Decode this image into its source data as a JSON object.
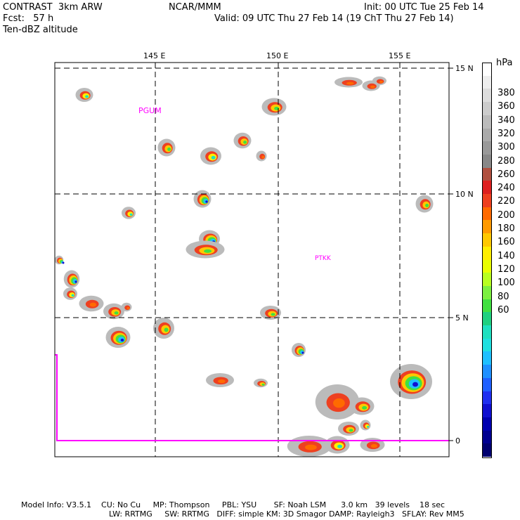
{
  "header": {
    "model": "CONTRAST  3km ARW",
    "org": "NCAR/MMM",
    "init": "Init: 00 UTC Tue 25 Feb 14",
    "fcst": "Fcst:   57 h",
    "valid": "Valid: 09 UTC Thu 27 Feb 14 (19 ChT Thu 27 Feb 14)",
    "field": "Ten-dBZ altitude"
  },
  "map": {
    "lon_labels": [
      "145 E",
      "150 E",
      "155 E"
    ],
    "lat_labels": [
      "15 N",
      "10 N",
      "5 N",
      "0"
    ],
    "stations": [
      "PGUM",
      "PTKK"
    ],
    "coast_color": "#ff00ff"
  },
  "colorbar": {
    "unit": "hPa",
    "labels": [
      "380",
      "360",
      "340",
      "320",
      "300",
      "280",
      "260",
      "240",
      "220",
      "200",
      "180",
      "160",
      "140",
      "120",
      "100",
      "80",
      "60"
    ],
    "colors": [
      "#ffffff",
      "#eeeeee",
      "#dddddd",
      "#cccccc",
      "#bbbbbb",
      "#aaaaaa",
      "#999999",
      "#888888",
      "#b05040",
      "#dd2020",
      "#ee4020",
      "#ff6a00",
      "#ff9a00",
      "#ffc800",
      "#ffee00",
      "#e8ff00",
      "#b8ff20",
      "#7cf040",
      "#40e040",
      "#20d080",
      "#20e0c0",
      "#20e0e0",
      "#20c0ff",
      "#2090ff",
      "#2060ff",
      "#2030f0",
      "#1010d0",
      "#0000b0",
      "#000090",
      "#000070"
    ]
  },
  "footer": {
    "line1": "Model Info: V3.5.1    CU: No Cu     MP: Thompson     PBL: YSU       SF: Noah LSM      3.0 km   39 levels    18 sec",
    "line2": "LW: RRTMG     SW: RRTMG   DIFF: simple KM: 3D Smagor DAMP: Rayleigh3   SFLAY: Rev MM5"
  }
}
